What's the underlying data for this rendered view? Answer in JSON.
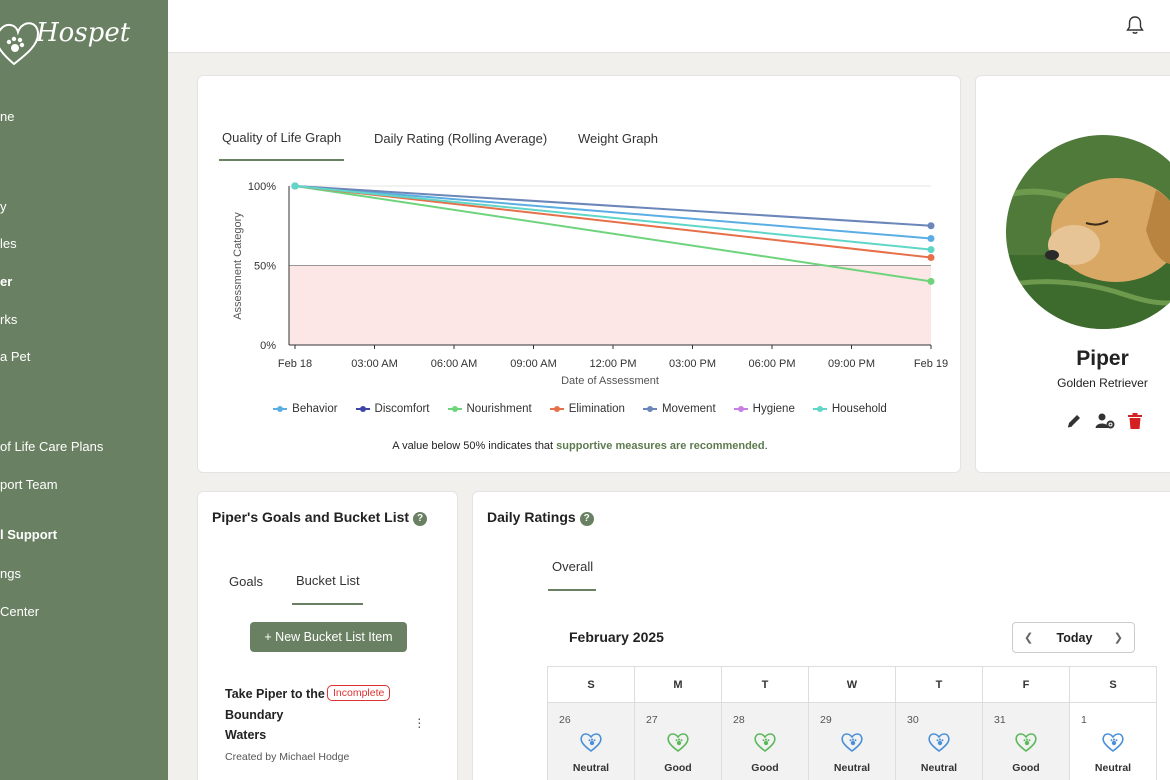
{
  "app": {
    "name": "Hospet"
  },
  "sidebar": {
    "items": [
      {
        "label": "ne",
        "bold": false
      },
      {
        "label": "y",
        "bold": false
      },
      {
        "label": "les",
        "bold": false
      },
      {
        "label": "er",
        "bold": true
      },
      {
        "label": "rks",
        "bold": false
      },
      {
        "label": "a Pet",
        "bold": false
      },
      {
        "label": "of Life Care Plans",
        "bold": false
      },
      {
        "label": "port Team",
        "bold": false
      },
      {
        "label": "l Support",
        "bold": true
      },
      {
        "label": "ngs",
        "bold": false
      },
      {
        "label": " Center",
        "bold": false
      }
    ]
  },
  "topbar": {
    "icon": "bell-icon"
  },
  "graph_card": {
    "tabs": [
      {
        "label": "Quality of Life Graph",
        "active": true
      },
      {
        "label": "Daily Rating (Rolling Average)",
        "active": false
      },
      {
        "label": "Weight Graph",
        "active": false
      }
    ],
    "note_prefix": "A value below 50% indicates that ",
    "note_highlight": "supportive measures are recommended",
    "note_suffix": "."
  },
  "chart_data": {
    "type": "line",
    "ylabel": "Assessment Category",
    "xlabel": "Date of Assessment",
    "yticks": [
      "100%",
      "50%",
      "0%"
    ],
    "ylim": [
      0,
      100
    ],
    "xticks": [
      "Feb 18",
      "03:00 AM",
      "06:00 AM",
      "09:00 AM",
      "12:00 PM",
      "03:00 PM",
      "06:00 PM",
      "09:00 PM",
      "Feb 19"
    ],
    "threshold": 50,
    "threshold_fill": "#fde6e6",
    "x": [
      "Feb 18",
      "Feb 19"
    ],
    "series": [
      {
        "name": "Behavior",
        "color": "#5aaee3",
        "values": [
          100,
          67
        ]
      },
      {
        "name": "Discomfort",
        "color": "#3f44a8",
        "values": [
          null,
          null
        ]
      },
      {
        "name": "Nourishment",
        "color": "#6ed47c",
        "values": [
          100,
          40
        ]
      },
      {
        "name": "Elimination",
        "color": "#e6704a",
        "values": [
          100,
          55
        ]
      },
      {
        "name": "Movement",
        "color": "#6b86b8",
        "values": [
          100,
          75
        ]
      },
      {
        "name": "Hygiene",
        "color": "#c77fe6",
        "values": [
          null,
          null
        ]
      },
      {
        "name": "Household",
        "color": "#5fd6c8",
        "values": [
          100,
          60
        ]
      }
    ],
    "legend_placement": "bottom"
  },
  "profile": {
    "name": "Piper",
    "breed": "Golden Retriever",
    "actions": [
      "pencil-icon",
      "user-gear-icon",
      "trash-icon"
    ]
  },
  "goals": {
    "title": "Piper's Goals and Bucket List",
    "help": "?",
    "tabs": [
      {
        "label": "Goals",
        "active": false
      },
      {
        "label": "Bucket List",
        "active": true
      }
    ],
    "new_button": "+ New Bucket List Item",
    "item": {
      "title": "Take Piper to the Boundary Waters",
      "status": "Incomplete",
      "meta": "Created by Michael Hodge"
    }
  },
  "ratings": {
    "title": "Daily Ratings",
    "help": "?",
    "tab": "Overall",
    "month": "February 2025",
    "today": "Today",
    "weekdays": [
      "S",
      "M",
      "T",
      "W",
      "T",
      "F",
      "S"
    ],
    "days": [
      {
        "day": "26",
        "rating": "Neutral",
        "current": false,
        "color": "#4a90d9"
      },
      {
        "day": "27",
        "rating": "Good",
        "current": false,
        "color": "#5cb85c"
      },
      {
        "day": "28",
        "rating": "Good",
        "current": false,
        "color": "#5cb85c"
      },
      {
        "day": "29",
        "rating": "Neutral",
        "current": false,
        "color": "#4a90d9"
      },
      {
        "day": "30",
        "rating": "Neutral",
        "current": false,
        "color": "#4a90d9"
      },
      {
        "day": "31",
        "rating": "Good",
        "current": false,
        "color": "#5cb85c"
      },
      {
        "day": "1",
        "rating": "Neutral",
        "current": true,
        "color": "#4a90d9"
      }
    ]
  }
}
